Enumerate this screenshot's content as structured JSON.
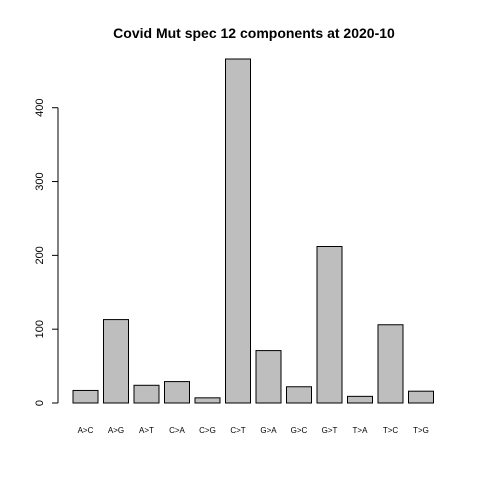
{
  "chart_data": {
    "type": "bar",
    "title": "Covid Mut spec 12 components at 2020-10",
    "xlabel": "",
    "ylabel": "",
    "categories": [
      "A>C",
      "A>G",
      "A>T",
      "C>A",
      "C>G",
      "C>T",
      "G>A",
      "G>C",
      "G>T",
      "T>A",
      "T>C",
      "T>G"
    ],
    "values": [
      17,
      113,
      24,
      29,
      7,
      466,
      71,
      22,
      212,
      9,
      106,
      16
    ],
    "ylim": [
      0,
      466
    ],
    "yticks": [
      0,
      100,
      200,
      300,
      400
    ],
    "grid": false,
    "legend": "none",
    "colors": {
      "bar_fill": "#bebebe",
      "bar_stroke": "#000000",
      "axis": "#000000",
      "background": "#ffffff"
    }
  }
}
